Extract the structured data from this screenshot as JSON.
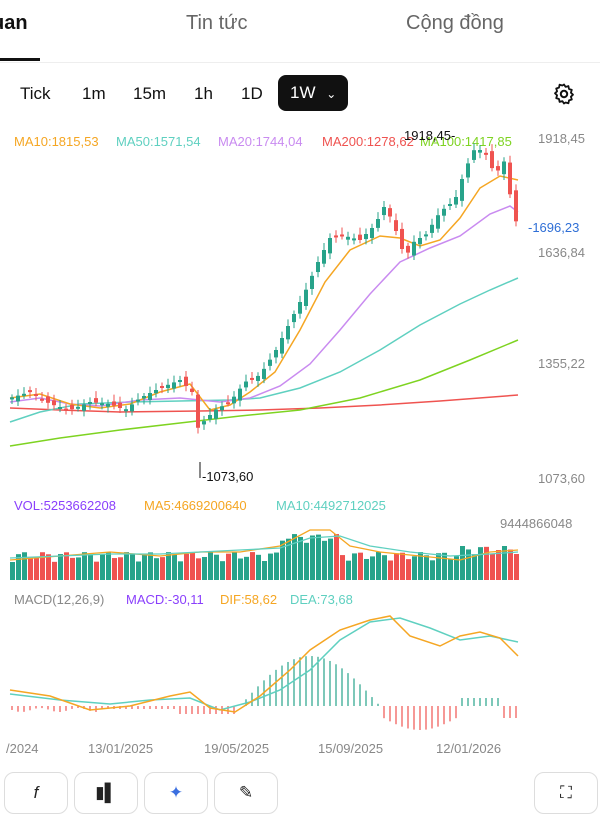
{
  "tabs": [
    {
      "label": "uan",
      "active": true
    },
    {
      "label": "Tin tức",
      "active": false
    },
    {
      "label": "Cộng đồng",
      "active": false
    }
  ],
  "timeframes": [
    "Tick",
    "1m",
    "15m",
    "1h",
    "1D",
    "1W"
  ],
  "active_timeframe": "1W",
  "ma_legend": {
    "ma10": "MA10:1815,53",
    "ma50": "MA50:1571,54",
    "ma20": "MA20:1744,04",
    "ma200": "MA200:1278,62",
    "ma100": "MA100:1417,85"
  },
  "price_axis": {
    "p1918": "1918,45",
    "p1696": "1696,23",
    "p1636": "1636,84",
    "p1355": "1355,22",
    "p1073": "1073,60"
  },
  "annotations": {
    "high": "1918,45-",
    "low": "-1073,60",
    "last": "-1696,23"
  },
  "volume_legend": {
    "vol": "VOL:5253662208",
    "ma5": "MA5:4669200640",
    "ma10": "MA10:4492712025",
    "max": "9444866048"
  },
  "macd_legend": {
    "title": "MACD(12,26,9)",
    "macd": "MACD:-30,11",
    "dif": "DIF:58,62",
    "dea": "DEA:73,68"
  },
  "dates": [
    "/2024",
    "13/01/2025",
    "19/05/2025",
    "15/09/2025",
    "12/01/2026"
  ],
  "bottom_buttons": [
    "f",
    "indicator",
    "ai",
    "draw",
    "fullscreen"
  ],
  "colors": {
    "up": "#27a38a",
    "down": "#ef5350",
    "ma10": "#f5a623",
    "ma20": "#c98bf0",
    "ma50": "#5fd0c0",
    "ma100": "#7ed321",
    "ma200": "#ef5350",
    "vol": "#8a3ffc",
    "last": "#2f6fd6",
    "dif": "#f5a623",
    "dea": "#5fd0c0"
  }
}
